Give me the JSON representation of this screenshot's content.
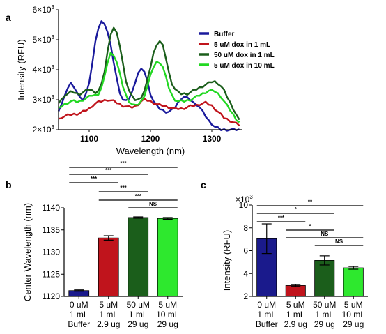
{
  "panels": {
    "a": "a",
    "b": "b",
    "c": "c"
  },
  "chart_data": [
    {
      "panel": "a",
      "type": "line",
      "xlabel": "Wavelength (nm)",
      "ylabel": "Intensity (RFU)",
      "xlim": [
        1050,
        1350
      ],
      "ylim": [
        2000,
        6000
      ],
      "xticks": [
        1100,
        1200,
        1300
      ],
      "xtick_labels": [
        "1100",
        "1200",
        "1300"
      ],
      "yticks": [
        2000,
        3000,
        4000,
        5000,
        6000
      ],
      "ytick_mantissa": [
        "2",
        "3",
        "4",
        "5",
        "6"
      ],
      "ytick_exponent": "3",
      "legend_position": "top-right",
      "series": [
        {
          "name": "Buffer",
          "color": "#1a1a9c",
          "x": [
            1050,
            1055,
            1060,
            1065,
            1070,
            1075,
            1080,
            1085,
            1090,
            1095,
            1100,
            1105,
            1110,
            1115,
            1120,
            1125,
            1130,
            1135,
            1140,
            1145,
            1150,
            1155,
            1160,
            1165,
            1170,
            1175,
            1180,
            1185,
            1190,
            1195,
            1200,
            1205,
            1210,
            1215,
            1220,
            1225,
            1230,
            1235,
            1240,
            1245,
            1250,
            1255,
            1260,
            1265,
            1270,
            1275,
            1280,
            1285,
            1290,
            1295,
            1300,
            1305,
            1310,
            1315,
            1320,
            1325,
            1330,
            1335,
            1340,
            1345
          ],
          "y": [
            2650,
            2850,
            3100,
            3400,
            3550,
            3450,
            3250,
            3050,
            3000,
            3200,
            3600,
            4200,
            4900,
            5400,
            5600,
            5550,
            5250,
            4800,
            4250,
            3700,
            3250,
            3000,
            2950,
            3050,
            3250,
            3600,
            3900,
            4000,
            3950,
            3600,
            3200,
            2950,
            2800,
            2700,
            2650,
            2600,
            2600,
            2650,
            2750,
            2900,
            3050,
            3100,
            3050,
            3000,
            2900,
            2850,
            2750,
            2600,
            2450,
            2300,
            2200,
            2100,
            2050,
            2000,
            2000,
            2000,
            2000,
            2000,
            2000,
            2000
          ]
        },
        {
          "name": "5 uM dox in 1 mL",
          "color": "#c0141c",
          "x": [
            1050,
            1055,
            1060,
            1065,
            1070,
            1075,
            1080,
            1085,
            1090,
            1095,
            1100,
            1105,
            1110,
            1115,
            1120,
            1125,
            1130,
            1135,
            1140,
            1145,
            1150,
            1155,
            1160,
            1165,
            1170,
            1175,
            1180,
            1185,
            1190,
            1195,
            1200,
            1205,
            1210,
            1215,
            1220,
            1225,
            1230,
            1235,
            1240,
            1245,
            1250,
            1255,
            1260,
            1265,
            1270,
            1275,
            1280,
            1285,
            1290,
            1295,
            1300,
            1305,
            1310,
            1315,
            1320,
            1325,
            1330,
            1335,
            1340,
            1345
          ],
          "y": [
            2350,
            2420,
            2450,
            2480,
            2500,
            2520,
            2530,
            2550,
            2600,
            2650,
            2700,
            2800,
            2870,
            2920,
            2950,
            2980,
            3000,
            2980,
            2950,
            2900,
            2850,
            2800,
            2780,
            2750,
            2750,
            2780,
            2850,
            2950,
            3000,
            2980,
            2950,
            2900,
            2850,
            2820,
            2800,
            2780,
            2750,
            2720,
            2700,
            2700,
            2700,
            2720,
            2750,
            2780,
            2800,
            2820,
            2850,
            2880,
            2900,
            2850,
            2800,
            2700,
            2600,
            2500,
            2400,
            2350,
            2300,
            2250,
            2200,
            2150
          ]
        },
        {
          "name": "50 uM dox in 1 mL",
          "color": "#1b5e1b",
          "x": [
            1050,
            1055,
            1060,
            1065,
            1070,
            1075,
            1080,
            1085,
            1090,
            1095,
            1100,
            1105,
            1110,
            1115,
            1120,
            1125,
            1130,
            1135,
            1140,
            1145,
            1150,
            1155,
            1160,
            1165,
            1170,
            1175,
            1180,
            1185,
            1190,
            1195,
            1200,
            1205,
            1210,
            1215,
            1220,
            1225,
            1230,
            1235,
            1240,
            1245,
            1250,
            1255,
            1260,
            1265,
            1270,
            1275,
            1280,
            1285,
            1290,
            1295,
            1300,
            1305,
            1310,
            1315,
            1320,
            1325,
            1330,
            1335,
            1340,
            1345
          ],
          "y": [
            2900,
            3000,
            3150,
            3200,
            3250,
            3250,
            3200,
            3200,
            3250,
            3300,
            3350,
            3300,
            3250,
            3300,
            3500,
            3950,
            4600,
            5200,
            5400,
            5200,
            4800,
            4200,
            3650,
            3300,
            3100,
            3000,
            3000,
            3100,
            3300,
            3650,
            4100,
            4550,
            4850,
            4950,
            4800,
            4400,
            3900,
            3550,
            3350,
            3250,
            3200,
            3200,
            3200,
            3250,
            3300,
            3350,
            3400,
            3450,
            3500,
            3550,
            3600,
            3600,
            3550,
            3450,
            3300,
            3100,
            2900,
            2700,
            2500,
            2300
          ]
        },
        {
          "name": "5 uM dox in 10 mL",
          "color": "#22d822",
          "x": [
            1050,
            1055,
            1060,
            1065,
            1070,
            1075,
            1080,
            1085,
            1090,
            1095,
            1100,
            1105,
            1110,
            1115,
            1120,
            1125,
            1130,
            1135,
            1140,
            1145,
            1150,
            1155,
            1160,
            1165,
            1170,
            1175,
            1180,
            1185,
            1190,
            1195,
            1200,
            1205,
            1210,
            1215,
            1220,
            1225,
            1230,
            1235,
            1240,
            1245,
            1250,
            1255,
            1260,
            1265,
            1270,
            1275,
            1280,
            1285,
            1290,
            1295,
            1300,
            1305,
            1310,
            1315,
            1320,
            1325,
            1330,
            1335,
            1340,
            1345
          ],
          "y": [
            2700,
            2780,
            2850,
            2900,
            2950,
            2950,
            2930,
            2950,
            3000,
            3050,
            3100,
            3150,
            3150,
            3200,
            3400,
            3750,
            4250,
            4550,
            4500,
            4250,
            3850,
            3450,
            3150,
            2950,
            2850,
            2800,
            2850,
            2950,
            3150,
            3450,
            3800,
            4100,
            4250,
            4250,
            4100,
            3750,
            3400,
            3150,
            3000,
            2950,
            2950,
            2950,
            2980,
            3000,
            3050,
            3100,
            3150,
            3200,
            3250,
            3300,
            3300,
            3280,
            3200,
            3100,
            2950,
            2800,
            2650,
            2500,
            2350,
            2250
          ]
        }
      ]
    },
    {
      "panel": "b",
      "type": "bar",
      "ylabel": "Center Wavelength (nm)",
      "ylim": [
        1120,
        1140
      ],
      "yticks": [
        1120,
        1125,
        1130,
        1135,
        1140
      ],
      "ytick_labels": [
        "1120",
        "1125",
        "1130",
        "1135",
        "1140"
      ],
      "categories": [
        [
          "0 uM",
          "1 mL",
          "Buffer"
        ],
        [
          "5 uM",
          "1 mL",
          "2.9 ug"
        ],
        [
          "50 uM",
          "1 mL",
          "29 ug"
        ],
        [
          "5 uM",
          "10 mL",
          "29 ug"
        ]
      ],
      "values": [
        1121.3,
        1133.2,
        1137.8,
        1137.6
      ],
      "errors": [
        0.15,
        0.5,
        0.15,
        0.2
      ],
      "colors": [
        "#1a1a8c",
        "#c0141c",
        "#1b5e1b",
        "#2ee82e"
      ],
      "comparisons": [
        {
          "from": 0,
          "to": 3,
          "label": "***"
        },
        {
          "from": 0,
          "to": 2,
          "label": "***"
        },
        {
          "from": 0,
          "to": 1,
          "label": "***"
        },
        {
          "from": 1,
          "to": 2,
          "label": "***"
        },
        {
          "from": 1,
          "to": 3,
          "label": "***"
        },
        {
          "from": 2,
          "to": 3,
          "label": "NS"
        }
      ]
    },
    {
      "panel": "c",
      "type": "bar",
      "ylabel": "Intensity (RFU)",
      "ylim": [
        2,
        10
      ],
      "yticks": [
        2,
        4,
        6,
        8,
        10
      ],
      "ytick_labels": [
        "2",
        "4",
        "6",
        "8",
        "10"
      ],
      "multiplier_label": "×10",
      "multiplier_exponent": "3",
      "categories": [
        [
          "0 uM",
          "1 mL",
          "Buffer"
        ],
        [
          "5 uM",
          "1 mL",
          "2.9 ug"
        ],
        [
          "50 uM",
          "1 mL",
          "29 ug"
        ],
        [
          "5 uM",
          "10 mL",
          "29 ug"
        ]
      ],
      "values": [
        7.05,
        2.95,
        5.15,
        4.5
      ],
      "errors": [
        1.3,
        0.08,
        0.4,
        0.12
      ],
      "colors": [
        "#1a1a8c",
        "#c0141c",
        "#1b5e1b",
        "#2ee82e"
      ],
      "comparisons": [
        {
          "from": 0,
          "to": 3,
          "label": "**"
        },
        {
          "from": 0,
          "to": 2,
          "label": "*"
        },
        {
          "from": 0,
          "to": 1,
          "label": "***"
        },
        {
          "from": 1,
          "to": 2,
          "label": "*"
        },
        {
          "from": 1,
          "to": 3,
          "label": "NS"
        },
        {
          "from": 2,
          "to": 3,
          "label": "NS"
        }
      ]
    }
  ]
}
